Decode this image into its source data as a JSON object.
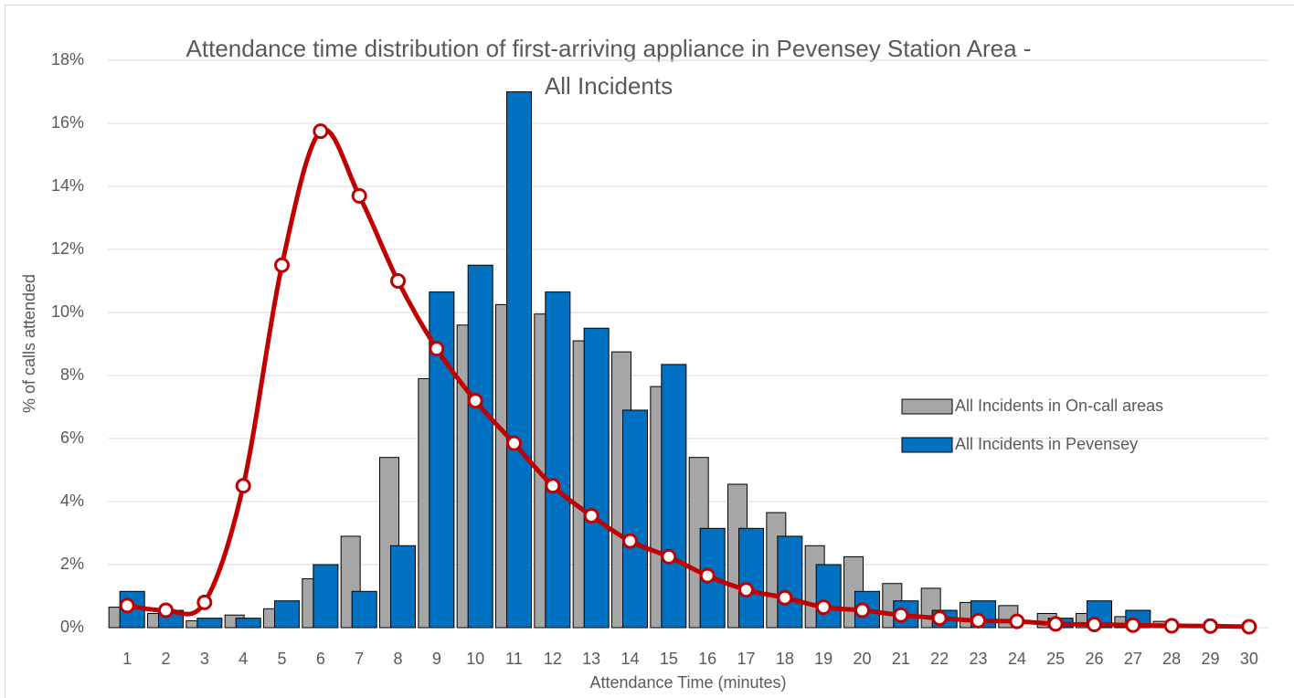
{
  "chart_data": {
    "type": "bar",
    "title": [
      "Attendance time distribution of first-arriving appliance in Pevensey Station Area -",
      "All Incidents"
    ],
    "x_label": "Attendance Time (minutes)",
    "y_label": "% of calls attended",
    "categories": [
      "1",
      "2",
      "3",
      "4",
      "5",
      "6",
      "7",
      "8",
      "9",
      "10",
      "11",
      "12",
      "13",
      "14",
      "15",
      "16",
      "17",
      "18",
      "19",
      "20",
      "21",
      "22",
      "23",
      "24",
      "25",
      "26",
      "27",
      "28",
      "29",
      "30"
    ],
    "series": [
      {
        "name": "All Incidents in On-call areas",
        "color": "#a6a6a6",
        "type": "bar",
        "values": [
          0.65,
          0.45,
          0.22,
          0.4,
          0.6,
          1.55,
          2.9,
          5.4,
          7.9,
          9.6,
          10.25,
          9.95,
          9.1,
          8.75,
          7.65,
          5.4,
          4.55,
          3.65,
          2.6,
          2.25,
          1.4,
          1.25,
          0.8,
          0.7,
          0.45,
          0.45,
          0.35,
          0.2,
          0.05,
          0.03
        ]
      },
      {
        "name": "All Incidents in Pevensey",
        "color": "#0070c0",
        "type": "bar",
        "values": [
          1.15,
          0.55,
          0.3,
          0.3,
          0.85,
          2.0,
          1.15,
          2.6,
          10.65,
          11.5,
          17.0,
          10.65,
          9.5,
          6.9,
          8.35,
          3.15,
          3.15,
          2.9,
          2.0,
          1.15,
          0.85,
          0.55,
          0.85,
          0,
          0.3,
          0.85,
          0.55,
          0,
          0,
          0
        ]
      },
      {
        "color": "#c00000",
        "type": "line",
        "values": [
          0.7,
          0.55,
          0.8,
          4.5,
          11.5,
          15.75,
          13.7,
          11.0,
          8.85,
          7.2,
          5.85,
          4.5,
          3.55,
          2.75,
          2.25,
          1.65,
          1.2,
          0.95,
          0.65,
          0.55,
          0.4,
          0.3,
          0.22,
          0.2,
          0.12,
          0.1,
          0.08,
          0.06,
          0.05,
          0.03
        ]
      }
    ],
    "ylim": [
      0,
      18
    ],
    "yticks": [
      {
        "value": 0,
        "label": "0%"
      },
      {
        "value": 2,
        "label": "2%"
      },
      {
        "value": 4,
        "label": "4%"
      },
      {
        "value": 6,
        "label": "6%"
      },
      {
        "value": 8,
        "label": "8%"
      },
      {
        "value": 10,
        "label": "10%"
      },
      {
        "value": 12,
        "label": "12%"
      },
      {
        "value": 14,
        "label": "14%"
      },
      {
        "value": 16,
        "label": "16%"
      },
      {
        "value": 18,
        "label": "18%"
      }
    ],
    "grid": true,
    "legend": "right"
  }
}
